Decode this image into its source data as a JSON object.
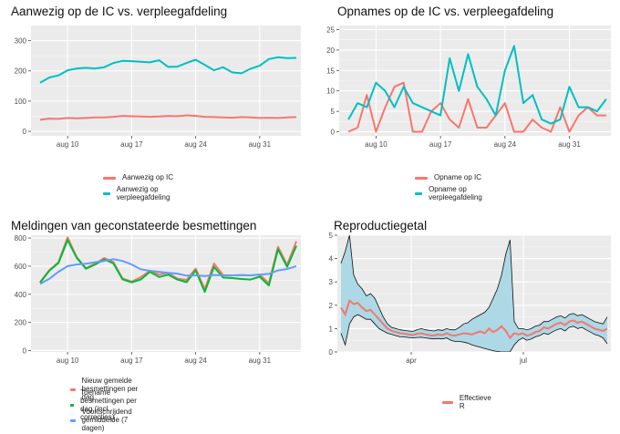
{
  "chart_data": [
    {
      "type": "line",
      "title": "Aanwezig op de IC vs. verpleegafdeling",
      "x_tick_labels": [
        "aug 10",
        "aug 17",
        "aug 24",
        "aug 31"
      ],
      "x_tick_days": [
        10,
        17,
        24,
        31
      ],
      "x_range": [
        6,
        35.5
      ],
      "ylim": [
        -15,
        350
      ],
      "y_ticks": [
        0,
        100,
        200,
        300
      ],
      "x_days": [
        7,
        8,
        9,
        10,
        11,
        12,
        13,
        14,
        15,
        16,
        17,
        18,
        19,
        20,
        21,
        22,
        23,
        24,
        25,
        26,
        27,
        28,
        29,
        30,
        31,
        32,
        33,
        34,
        35
      ],
      "series": [
        {
          "name": "Aanwezig op IC",
          "color": "#F8766D",
          "values": [
            38,
            42,
            41,
            44,
            43,
            44,
            46,
            46,
            48,
            51,
            50,
            49,
            48,
            49,
            51,
            50,
            53,
            51,
            48,
            47,
            46,
            45,
            47,
            46,
            44,
            45,
            44,
            46,
            47
          ]
        },
        {
          "name": "Aanwezig op verpleegafdeling",
          "color": "#00BFC4",
          "values": [
            161,
            178,
            185,
            202,
            208,
            210,
            208,
            212,
            226,
            233,
            232,
            230,
            228,
            235,
            213,
            214,
            226,
            237,
            220,
            202,
            212,
            195,
            192,
            207,
            217,
            239,
            245,
            242,
            243
          ]
        }
      ],
      "legend": [
        "Aanwezig op IC",
        "Aanwezig op verpleegafdeling"
      ]
    },
    {
      "type": "line",
      "title": "Opnames op de IC vs. verpleegafdeling",
      "x_tick_labels": [
        "aug 10",
        "aug 31"
      ],
      "x_tick_days": [
        10,
        31
      ],
      "x_range": [
        6,
        35.5
      ],
      "ylim": [
        -1,
        26
      ],
      "y_ticks": [
        0,
        5,
        10,
        15,
        20,
        25
      ],
      "x_days": [
        7,
        8,
        9,
        10,
        11,
        12,
        13,
        14,
        15,
        16,
        17,
        18,
        19,
        20,
        21,
        22,
        23,
        24,
        25,
        26,
        27,
        28,
        29,
        30,
        31,
        32,
        33,
        34,
        35
      ],
      "extra_x_labels": [
        "aug 17",
        "aug 24"
      ],
      "series": [
        {
          "name": "Opname op IC",
          "color": "#F8766D",
          "values": [
            0,
            1,
            9,
            0,
            6,
            11,
            12,
            0,
            0,
            5,
            7,
            3,
            1,
            8,
            1,
            1,
            4,
            7,
            0,
            0,
            3,
            1,
            0,
            6,
            0,
            4,
            6,
            4,
            4
          ]
        },
        {
          "name": "Opname op verpleegafdeling",
          "color": "#00BFC4",
          "values": [
            3,
            7,
            6,
            12,
            10,
            6,
            11,
            7,
            6,
            5,
            4,
            18,
            10,
            19,
            11,
            8,
            4,
            15,
            21,
            7,
            9,
            3,
            2,
            3,
            11,
            6,
            6,
            5,
            8
          ]
        }
      ],
      "legend": [
        "Opname op IC",
        "Opname op verpleegafdeling"
      ]
    },
    {
      "type": "line",
      "title": "Meldingen van geconstateerde besmettingen",
      "x_tick_labels": [
        "aug 10",
        "aug 17",
        "aug 24",
        "aug 31"
      ],
      "x_tick_days": [
        10,
        17,
        24,
        31
      ],
      "x_range": [
        6,
        35.5
      ],
      "ylim": [
        -10,
        820
      ],
      "y_ticks": [
        0,
        200,
        400,
        600,
        800
      ],
      "x_days": [
        7,
        8,
        9,
        10,
        11,
        12,
        13,
        14,
        15,
        16,
        17,
        18,
        19,
        20,
        21,
        22,
        23,
        24,
        25,
        26,
        27,
        28,
        29,
        30,
        31,
        32,
        33,
        34,
        35
      ],
      "series": [
        {
          "name": "Nieuw gemelde besmettingen per dag",
          "color": "#F8766D",
          "values": [
            487,
            571,
            628,
            805,
            663,
            585,
            617,
            658,
            630,
            514,
            490,
            522,
            567,
            541,
            552,
            512,
            502,
            583,
            436,
            619,
            536,
            535,
            536,
            534,
            541,
            478,
            738,
            609,
            777
          ]
        },
        {
          "name": "Toename besmettingen per dag (incl. correcties)",
          "color": "#00BA38",
          "values": [
            483,
            568,
            622,
            786,
            659,
            582,
            611,
            649,
            620,
            507,
            485,
            505,
            560,
            523,
            539,
            505,
            486,
            570,
            417,
            595,
            519,
            515,
            509,
            505,
            525,
            463,
            721,
            595,
            745
          ]
        },
        {
          "name": "Voortschrijdend gemiddelde (7 dagen)",
          "color": "#619CFF",
          "values": [
            474,
            510,
            560,
            600,
            612,
            617,
            628,
            637,
            650,
            637,
            612,
            578,
            567,
            560,
            553,
            547,
            533,
            535,
            530,
            537,
            535,
            534,
            537,
            535,
            540,
            545,
            570,
            580,
            600
          ]
        }
      ],
      "legend": [
        "Nieuw gemelde besmettingen per dag",
        "Toename besmettingen per dag (incl. correcties)",
        "Voortschrijdend gemiddelde (7 dagen)"
      ]
    },
    {
      "type": "area",
      "title": "Reproductiegetal",
      "x_tick_labels": [
        "apr",
        "jul"
      ],
      "ylim": [
        0,
        5
      ],
      "y_ticks": [
        0,
        1,
        2,
        3,
        4,
        5
      ],
      "band_color": "#ADD8E6",
      "series": [
        {
          "name": "Effectieve R",
          "color": "#F8766D",
          "values": [
            1.9,
            1.6,
            2.2,
            2.05,
            2.1,
            1.9,
            1.75,
            1.8,
            1.6,
            1.4,
            1.2,
            1.0,
            0.9,
            0.85,
            0.8,
            0.78,
            0.75,
            0.72,
            0.78,
            0.8,
            0.75,
            0.72,
            0.7,
            0.75,
            0.72,
            0.8,
            0.72,
            0.7,
            0.75,
            0.8,
            0.78,
            0.75,
            0.82,
            0.88,
            0.8,
            1.0,
            0.85,
            0.95,
            1.1,
            0.9,
            0.6,
            0.8,
            0.75,
            0.8,
            0.7,
            0.75,
            0.85,
            0.9,
            1.05,
            1.0,
            1.1,
            1.2,
            1.25,
            1.15,
            1.3,
            1.35,
            1.25,
            1.3,
            1.2,
            1.1,
            1.0,
            0.95,
            0.9,
            1.0
          ]
        },
        {
          "name": "Upper",
          "values": [
            3.8,
            4.3,
            5.0,
            3.3,
            2.9,
            2.7,
            2.4,
            2.5,
            2.3,
            1.9,
            1.5,
            1.2,
            1.05,
            1.0,
            0.95,
            0.92,
            0.9,
            0.88,
            0.95,
            1.0,
            0.95,
            0.92,
            0.9,
            0.95,
            0.92,
            1.0,
            0.95,
            0.95,
            1.05,
            1.2,
            1.25,
            1.4,
            1.5,
            1.6,
            1.7,
            1.9,
            2.3,
            2.7,
            3.3,
            4.2,
            4.8,
            1.3,
            1.0,
            1.0,
            0.95,
            1.0,
            1.1,
            1.15,
            1.3,
            1.3,
            1.4,
            1.5,
            1.55,
            1.45,
            1.6,
            1.65,
            1.55,
            1.6,
            1.5,
            1.4,
            1.3,
            1.25,
            1.2,
            1.5
          ]
        },
        {
          "name": "Lower",
          "values": [
            0.8,
            0.3,
            1.2,
            1.5,
            1.6,
            1.5,
            1.4,
            1.4,
            1.2,
            1.0,
            0.9,
            0.8,
            0.75,
            0.7,
            0.65,
            0.64,
            0.62,
            0.6,
            0.62,
            0.63,
            0.6,
            0.58,
            0.56,
            0.58,
            0.56,
            0.6,
            0.5,
            0.45,
            0.45,
            0.42,
            0.38,
            0.3,
            0.25,
            0.2,
            0.15,
            0.1,
            0.05,
            0.02,
            0.0,
            0.0,
            0.0,
            0.3,
            0.5,
            0.6,
            0.5,
            0.55,
            0.65,
            0.7,
            0.8,
            0.75,
            0.85,
            0.95,
            1.0,
            0.9,
            1.05,
            1.1,
            1.0,
            1.05,
            0.95,
            0.85,
            0.75,
            0.7,
            0.6,
            0.35
          ]
        }
      ],
      "legend": [
        "Effectieve R"
      ]
    }
  ]
}
